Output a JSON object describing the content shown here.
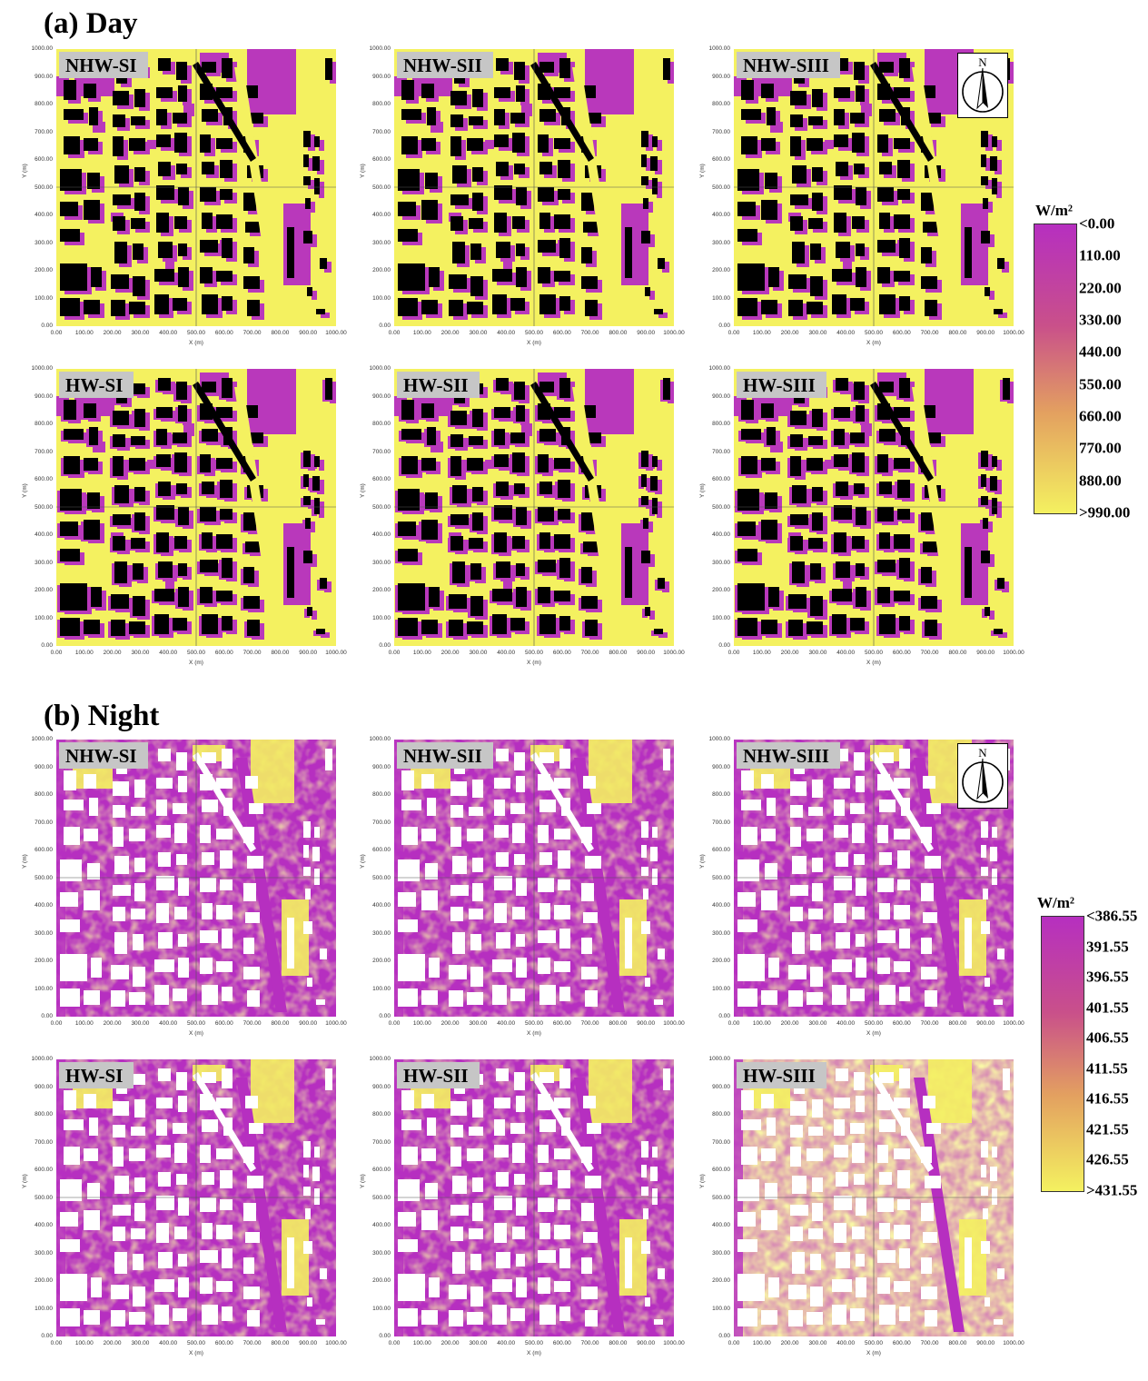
{
  "sections": [
    {
      "id": "day",
      "title": "(a) Day",
      "panels": [
        "NHW-SI",
        "NHW-SII",
        "NHW-SIII",
        "HW-SI",
        "HW-SII",
        "HW-SIII"
      ],
      "legend": {
        "unit": "W/m²",
        "labels": [
          "<0.00",
          "110.00",
          "220.00",
          "330.00",
          "440.00",
          "550.00",
          "660.00",
          "770.00",
          "880.00",
          ">990.00"
        ],
        "colors": {
          "low": "#b62fc0",
          "high": "#f4f160"
        }
      }
    },
    {
      "id": "night",
      "title": "(b) Night",
      "panels": [
        "NHW-SI",
        "NHW-SII",
        "NHW-SIII",
        "HW-SI",
        "HW-SII",
        "HW-SIII"
      ],
      "legend": {
        "unit": "W/m²",
        "labels": [
          "<386.55",
          "391.55",
          "396.55",
          "401.55",
          "406.55",
          "411.55",
          "416.55",
          "421.55",
          "426.55",
          ">431.55"
        ],
        "colors": {
          "low": "#b62fc0",
          "high": "#f4f160"
        }
      }
    }
  ],
  "axes": {
    "x_label": "X (m)",
    "y_label": "Y (m)",
    "x_ticks": [
      "0.00",
      "100.00",
      "200.00",
      "300.00",
      "400.00",
      "500.00",
      "600.00",
      "700.00",
      "800.00",
      "900.00",
      "1000.00"
    ],
    "y_ticks": [
      "1000.00",
      "900.00",
      "800.00",
      "700.00",
      "600.00",
      "500.00",
      "400.00",
      "300.00",
      "200.00",
      "100.00",
      "0.00"
    ],
    "x_range": [
      0,
      1000
    ],
    "y_range": [
      0,
      1000
    ]
  },
  "north_arrow": {
    "label": "N",
    "icon": "north-arrow-icon"
  },
  "colors": {
    "building_day": "#000000",
    "building_night": "#ffffff",
    "magenta": "#b62fc0",
    "yellow": "#f4f160",
    "label_bg": "#c6c6c6"
  }
}
